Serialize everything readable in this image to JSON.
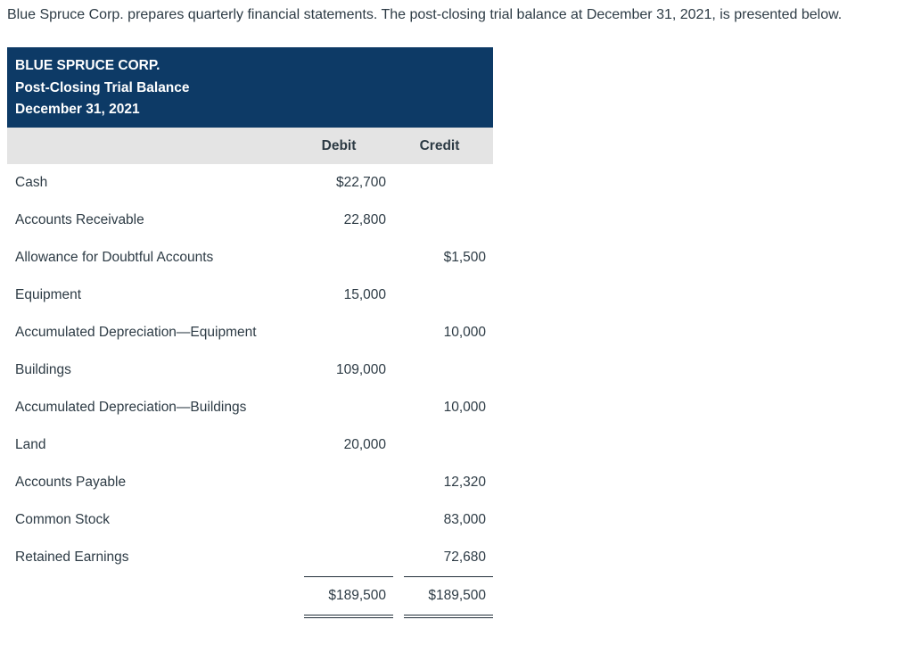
{
  "intro": "Blue Spruce Corp. prepares quarterly financial statements. The post-closing trial balance at December 31, 2021, is presented below.",
  "table": {
    "title_lines": [
      "BLUE SPRUCE CORP.",
      "Post-Closing Trial Balance",
      "December 31, 2021"
    ],
    "columns": {
      "debit": "Debit",
      "credit": "Credit"
    },
    "rows": [
      {
        "account": "Cash",
        "debit": "$22,700",
        "credit": ""
      },
      {
        "account": "Accounts Receivable",
        "debit": "22,800",
        "credit": ""
      },
      {
        "account": "Allowance for Doubtful Accounts",
        "debit": "",
        "credit": "$1,500"
      },
      {
        "account": "Equipment",
        "debit": "15,000",
        "credit": ""
      },
      {
        "account": "Accumulated Depreciation—Equipment",
        "debit": "",
        "credit": "10,000"
      },
      {
        "account": "Buildings",
        "debit": "109,000",
        "credit": ""
      },
      {
        "account": "Accumulated Depreciation—Buildings",
        "debit": "",
        "credit": "10,000"
      },
      {
        "account": "Land",
        "debit": "20,000",
        "credit": ""
      },
      {
        "account": "Accounts Payable",
        "debit": "",
        "credit": "12,320"
      },
      {
        "account": "Common Stock",
        "debit": "",
        "credit": "83,000"
      },
      {
        "account": "Retained Earnings",
        "debit": "",
        "credit": "72,680"
      }
    ],
    "totals": {
      "debit": "$189,500",
      "credit": "$189,500"
    }
  },
  "colors": {
    "header_bg": "#0d3a66",
    "subheader_bg": "#e4e4e4",
    "text": "#2d3b45",
    "rule": "#222f3a"
  }
}
